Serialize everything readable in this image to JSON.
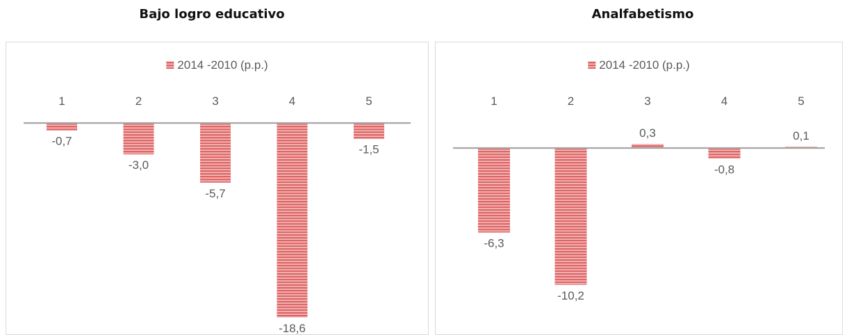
{
  "titles": {
    "left": "Bajo logro educativo",
    "right": "Analfabetismo"
  },
  "colors": {
    "bar": "#e06666",
    "bar_stripe": "#fbeaea",
    "axis": "#a6a6a6",
    "text": "#595959"
  },
  "chart_data": [
    {
      "type": "bar",
      "title": "Bajo logro educativo",
      "categories": [
        "1",
        "2",
        "3",
        "4",
        "5"
      ],
      "series": [
        {
          "name": "2014 -2010 (p.p.)",
          "values": [
            -0.7,
            -3.0,
            -5.7,
            -18.6,
            -1.5
          ]
        }
      ],
      "value_labels": [
        "-0,7",
        "-3,0",
        "-5,7",
        "-18,6",
        "-1,5"
      ],
      "ylim": [
        -20,
        0
      ],
      "legend_position": "top",
      "category_labels_position": "top",
      "grid": false
    },
    {
      "type": "bar",
      "title": "Analfabetismo",
      "categories": [
        "1",
        "2",
        "3",
        "4",
        "5"
      ],
      "series": [
        {
          "name": "2014 -2010 (p.p.)",
          "values": [
            -6.3,
            -10.2,
            0.3,
            -0.8,
            0.1
          ]
        }
      ],
      "value_labels": [
        "-6,3",
        "-10,2",
        "0,3",
        "-0,8",
        "0,1"
      ],
      "ylim": [
        -12,
        0.5
      ],
      "legend_position": "top",
      "category_labels_position": "top",
      "grid": false
    }
  ]
}
